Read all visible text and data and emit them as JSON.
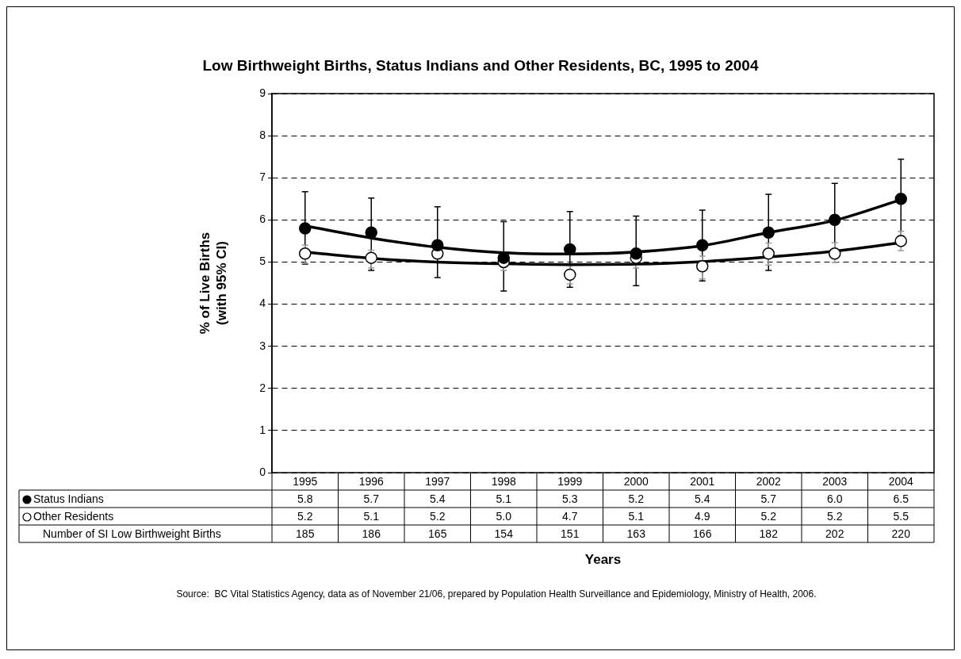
{
  "chart_data": {
    "type": "scatter",
    "title": "Low Birthweight Births, Status Indians and Other Residents, BC, 1995 to 2004",
    "xlabel": "Years",
    "ylabel": "% of Live Births\n(with 95% CI)",
    "categories": [
      "1995",
      "1996",
      "1997",
      "1998",
      "1999",
      "2000",
      "2001",
      "2002",
      "2003",
      "2004"
    ],
    "series": [
      {
        "name": "Status Indians",
        "color": "#000000",
        "values": [
          5.8,
          5.7,
          5.4,
          5.1,
          5.3,
          5.2,
          5.4,
          5.7,
          6.0,
          6.5
        ],
        "value_labels": [
          "5.8",
          "5.7",
          "5.4",
          "5.1",
          "5.3",
          "5.2",
          "5.4",
          "5.7",
          "6.0",
          "6.5"
        ],
        "errors": [
          [
            4.95,
            6.67
          ],
          [
            4.8,
            6.52
          ],
          [
            4.63,
            6.31
          ],
          [
            4.31,
            5.96
          ],
          [
            4.4,
            6.2
          ],
          [
            4.44,
            6.09
          ],
          [
            4.55,
            6.23
          ],
          [
            4.8,
            6.61
          ],
          [
            5.15,
            6.87
          ],
          [
            5.62,
            7.44
          ]
        ]
      },
      {
        "name": "Other Residents",
        "color": "#ffffff",
        "values": [
          5.2,
          5.1,
          5.2,
          5.0,
          4.7,
          5.1,
          4.9,
          5.2,
          5.2,
          5.5
        ],
        "value_labels": [
          "5.2",
          "5.1",
          "5.2",
          "5.0",
          "4.7",
          "5.1",
          "4.9",
          "5.2",
          "5.2",
          "5.5"
        ],
        "errors": [
          [
            4.97,
            5.4
          ],
          [
            4.86,
            5.28
          ],
          null,
          [
            4.8,
            5.2
          ],
          [
            4.48,
            4.92
          ],
          [
            4.86,
            5.32
          ],
          [
            4.6,
            5.14
          ],
          [
            4.93,
            5.45
          ],
          [
            4.99,
            5.46
          ],
          [
            5.27,
            5.73
          ]
        ]
      },
      {
        "type": "line",
        "color": "#000000",
        "marker": "none",
        "values": [
          5.86,
          5.57,
          5.35,
          5.22,
          5.19,
          5.24,
          5.39,
          5.7,
          5.99,
          6.48
        ]
      },
      {
        "type": "line",
        "color": "#000000",
        "marker": "none",
        "values": [
          5.24,
          5.09,
          5.0,
          4.96,
          4.94,
          4.95,
          5.01,
          5.12,
          5.26,
          5.46
        ]
      }
    ],
    "ylim": [
      0,
      9
    ],
    "yticks": [
      0,
      1,
      2,
      3,
      4,
      5,
      6,
      7,
      8,
      9
    ],
    "grid": "y",
    "marker": "circle",
    "legend": "bottom left",
    "annotations": [
      "Number of SI Low Birthweight Births",
      "185",
      "186",
      "165",
      "154",
      "151",
      "163",
      "166",
      "182",
      "202",
      "220",
      "Source:  BC Vital Statistics Agency, data as of November 21/06, prepared by Population Health Surveillance and Epidemiology, Ministry of Health, 2006."
    ]
  }
}
